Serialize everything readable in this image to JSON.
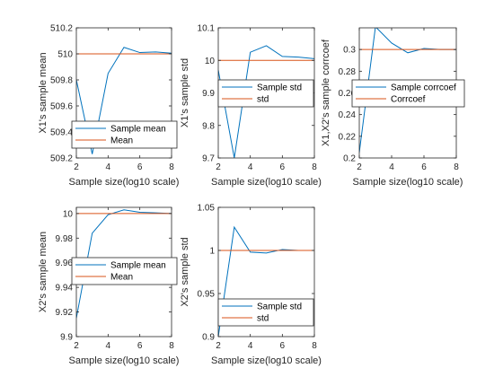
{
  "figure": {
    "colors": {
      "sample": "#0072BD",
      "reference": "#D95319",
      "axis": "#262626"
    }
  },
  "chart_data": [
    {
      "type": "line",
      "xlabel": "Sample size(log10 scale)",
      "ylabel": "X1's sample mean",
      "xlim": [
        2,
        8
      ],
      "ylim": [
        509.2,
        510.2
      ],
      "x_ticks": [
        "2",
        "4",
        "6",
        "8"
      ],
      "y_ticks": [
        "509.2",
        "509.4",
        "509.6",
        "509.8",
        "510",
        "510.2"
      ],
      "legend_placement": "bottom-left",
      "series": [
        {
          "name": "Sample mean",
          "x": [
            2,
            3,
            4,
            5,
            6,
            7,
            8
          ],
          "y": [
            509.8,
            509.23,
            509.85,
            510.05,
            510.01,
            510.015,
            510.005
          ]
        },
        {
          "name": "Mean",
          "x": [
            2,
            8
          ],
          "y": [
            510,
            510
          ]
        }
      ]
    },
    {
      "type": "line",
      "xlabel": "Sample size(log10 scale)",
      "ylabel": "X1's sample std",
      "xlim": [
        2,
        8
      ],
      "ylim": [
        9.7,
        10.1
      ],
      "x_ticks": [
        "2",
        "4",
        "6",
        "8"
      ],
      "y_ticks": [
        "9.7",
        "9.8",
        "9.9",
        "10",
        "10.1"
      ],
      "legend_placement": "top-left",
      "series": [
        {
          "name": "Sample std",
          "x": [
            2,
            3,
            4,
            5,
            6,
            7,
            8
          ],
          "y": [
            9.97,
            9.7,
            10.025,
            10.045,
            10.012,
            10.01,
            10.005
          ]
        },
        {
          "name": "std",
          "x": [
            2,
            8
          ],
          "y": [
            10,
            10
          ]
        }
      ]
    },
    {
      "type": "line",
      "xlabel": "Sample size(log10 scale)",
      "ylabel": "X1,X2's sample corrcoef",
      "xlim": [
        2,
        8
      ],
      "ylim": [
        0.2,
        0.32
      ],
      "x_ticks": [
        "2",
        "4",
        "6",
        "8"
      ],
      "y_ticks": [
        "0.2",
        "0.22",
        "0.24",
        "0.26",
        "0.28",
        "0.3"
      ],
      "legend_placement": "top-left",
      "series": [
        {
          "name": "Sample corrcoef",
          "x": [
            2,
            3,
            4,
            5,
            6,
            7,
            8
          ],
          "y": [
            0.205,
            0.321,
            0.306,
            0.297,
            0.301,
            0.3,
            0.3
          ]
        },
        {
          "name": "Corrcoef",
          "x": [
            2,
            8
          ],
          "y": [
            0.3,
            0.3
          ]
        }
      ]
    },
    {
      "type": "line",
      "xlabel": "Sample size(log10 scale)",
      "ylabel": "X2's sample mean",
      "xlim": [
        2,
        8
      ],
      "ylim": [
        9.9,
        10.005
      ],
      "x_ticks": [
        "2",
        "4",
        "6",
        "8"
      ],
      "y_ticks": [
        "9.9",
        "9.92",
        "9.94",
        "9.96",
        "9.98",
        "10"
      ],
      "legend_placement": "center-left",
      "series": [
        {
          "name": "Sample mean",
          "x": [
            2,
            3,
            4,
            5,
            6,
            7,
            8
          ],
          "y": [
            9.915,
            9.984,
            9.999,
            10.003,
            10.001,
            10.0005,
            10
          ]
        },
        {
          "name": "Mean",
          "x": [
            2,
            8
          ],
          "y": [
            10,
            10
          ]
        }
      ]
    },
    {
      "type": "line",
      "xlabel": "Sample size(log10 scale)",
      "ylabel": "X2's sample std",
      "xlim": [
        2,
        8
      ],
      "ylim": [
        0.9,
        1.05
      ],
      "x_ticks": [
        "2",
        "4",
        "6",
        "8"
      ],
      "y_ticks": [
        "0.9",
        "0.95",
        "1",
        "1.05"
      ],
      "legend_placement": "bottom-left",
      "series": [
        {
          "name": "Sample std",
          "x": [
            2,
            3,
            4,
            5,
            6,
            7,
            8
          ],
          "y": [
            0.9,
            1.027,
            0.998,
            0.997,
            1.001,
            1.0,
            1.0
          ]
        },
        {
          "name": "std",
          "x": [
            2,
            8
          ],
          "y": [
            1,
            1
          ]
        }
      ]
    }
  ]
}
